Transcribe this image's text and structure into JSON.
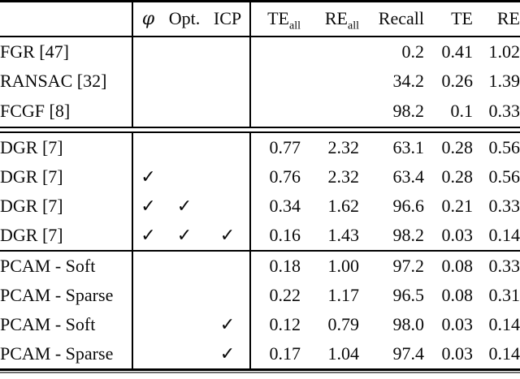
{
  "table": {
    "checkmark": "✓",
    "columns": [
      {
        "label": ""
      },
      {
        "label": "φ"
      },
      {
        "label": "Opt."
      },
      {
        "label": "ICP"
      },
      {
        "label": "TE",
        "sub": "all"
      },
      {
        "label": "RE",
        "sub": "all"
      },
      {
        "label": "Recall"
      },
      {
        "label": "TE"
      },
      {
        "label": "RE"
      }
    ],
    "sections": [
      {
        "rows": [
          {
            "method": "FGR [47]",
            "checks": [
              false,
              false,
              false
            ],
            "values": [
              "",
              "",
              "0.2",
              "0.41",
              "1.02"
            ],
            "bold": [
              false,
              false,
              false,
              false,
              false
            ]
          },
          {
            "method": "RANSAC [32]",
            "checks": [
              false,
              false,
              false
            ],
            "values": [
              "",
              "",
              "34.2",
              "0.26",
              "1.39"
            ],
            "bold": [
              false,
              false,
              false,
              false,
              false
            ]
          },
          {
            "method": "FCGF [8]",
            "checks": [
              false,
              false,
              false
            ],
            "values": [
              "",
              "",
              "98.2",
              "0.1",
              "0.33"
            ],
            "bold": [
              false,
              false,
              true,
              false,
              false
            ]
          }
        ]
      },
      {
        "rows": [
          {
            "method": "DGR [7]",
            "checks": [
              false,
              false,
              false
            ],
            "values": [
              "0.77",
              "2.32",
              "63.1",
              "0.28",
              "0.56"
            ],
            "bold": [
              false,
              false,
              false,
              false,
              false
            ]
          },
          {
            "method": "DGR [7]",
            "checks": [
              true,
              false,
              false
            ],
            "values": [
              "0.76",
              "2.32",
              "63.4",
              "0.28",
              "0.56"
            ],
            "bold": [
              false,
              false,
              false,
              false,
              false
            ]
          },
          {
            "method": "DGR [7]",
            "checks": [
              true,
              true,
              false
            ],
            "values": [
              "0.34",
              "1.62",
              "96.6",
              "0.21",
              "0.33"
            ],
            "bold": [
              false,
              false,
              false,
              false,
              false
            ]
          },
          {
            "method": "DGR [7]",
            "checks": [
              true,
              true,
              true
            ],
            "values": [
              "0.16",
              "1.43",
              "98.2",
              "0.03",
              "0.14"
            ],
            "bold": [
              false,
              false,
              true,
              true,
              true
            ]
          }
        ]
      },
      {
        "rows": [
          {
            "method": "PCAM - Soft",
            "checks": [
              false,
              false,
              false
            ],
            "values": [
              "0.18",
              "1.00",
              "97.2",
              "0.08",
              "0.33"
            ],
            "bold": [
              false,
              false,
              false,
              false,
              false
            ]
          },
          {
            "method": "PCAM - Sparse",
            "checks": [
              false,
              false,
              false
            ],
            "values": [
              "0.22",
              "1.17",
              "96.5",
              "0.08",
              "0.31"
            ],
            "bold": [
              false,
              false,
              false,
              false,
              false
            ]
          },
          {
            "method": "PCAM - Soft",
            "checks": [
              false,
              false,
              true
            ],
            "values": [
              "0.12",
              "0.79",
              "98.0",
              "0.03",
              "0.14"
            ],
            "bold": [
              true,
              true,
              false,
              true,
              true
            ]
          },
          {
            "method": "PCAM - Sparse",
            "checks": [
              false,
              false,
              true
            ],
            "values": [
              "0.17",
              "1.04",
              "97.4",
              "0.03",
              "0.14"
            ],
            "bold": [
              false,
              false,
              false,
              true,
              true
            ]
          }
        ]
      }
    ]
  }
}
